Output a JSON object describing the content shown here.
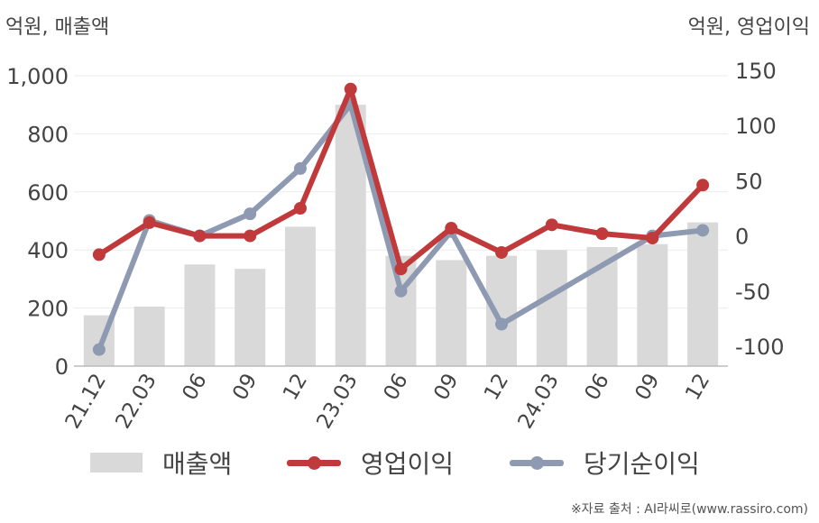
{
  "colors": {
    "revenue": "#d9d9d9",
    "operating_profit": "#c0393b",
    "net_income": "#8e9ab2",
    "axis": "#bbbbbb",
    "grid": "#ececec",
    "text": "#444444"
  },
  "units": {
    "left": "억원, 매출액",
    "right": "억원, 영업이익"
  },
  "legend": {
    "revenue": "매출액",
    "operating_profit": "영업이익",
    "net_income": "당기순이익"
  },
  "source": "※자료 출처 : AI라씨로(www.rassiro.com)",
  "chart_data": {
    "type": "bar",
    "categories": [
      "21.12",
      "22.03",
      "06",
      "09",
      "12",
      "23.03",
      "06",
      "09",
      "12",
      "24.03",
      "06",
      "09",
      "12"
    ],
    "series": [
      {
        "name": "매출액",
        "type": "bar",
        "axis": "left",
        "values": [
          175,
          205,
          350,
          335,
          480,
          900,
          380,
          365,
          380,
          400,
          410,
          420,
          495
        ]
      },
      {
        "name": "영업이익",
        "type": "line",
        "axis": "right",
        "values": [
          -17,
          12,
          0,
          0,
          25,
          133,
          -30,
          7,
          -15,
          10,
          2,
          -2,
          46
        ]
      },
      {
        "name": "당기순이익",
        "type": "line",
        "axis": "right",
        "values": [
          -103,
          14,
          0,
          20,
          61,
          119,
          -50,
          4,
          -80,
          null,
          null,
          0,
          5
        ]
      }
    ],
    "left_axis": {
      "ylim": [
        0,
        1000
      ],
      "ticks": [
        0,
        200,
        400,
        600,
        800,
        1000
      ],
      "tick_labels": [
        "0",
        "200",
        "400",
        "600",
        "800",
        "1,000"
      ]
    },
    "right_axis": {
      "ylim": [
        -120,
        150
      ],
      "ticks": [
        -100,
        -50,
        0,
        50,
        100,
        150
      ],
      "tick_labels": [
        "-100",
        "-50",
        "0",
        "50",
        "100",
        "150"
      ]
    },
    "grid": true,
    "legend_position": "bottom"
  }
}
